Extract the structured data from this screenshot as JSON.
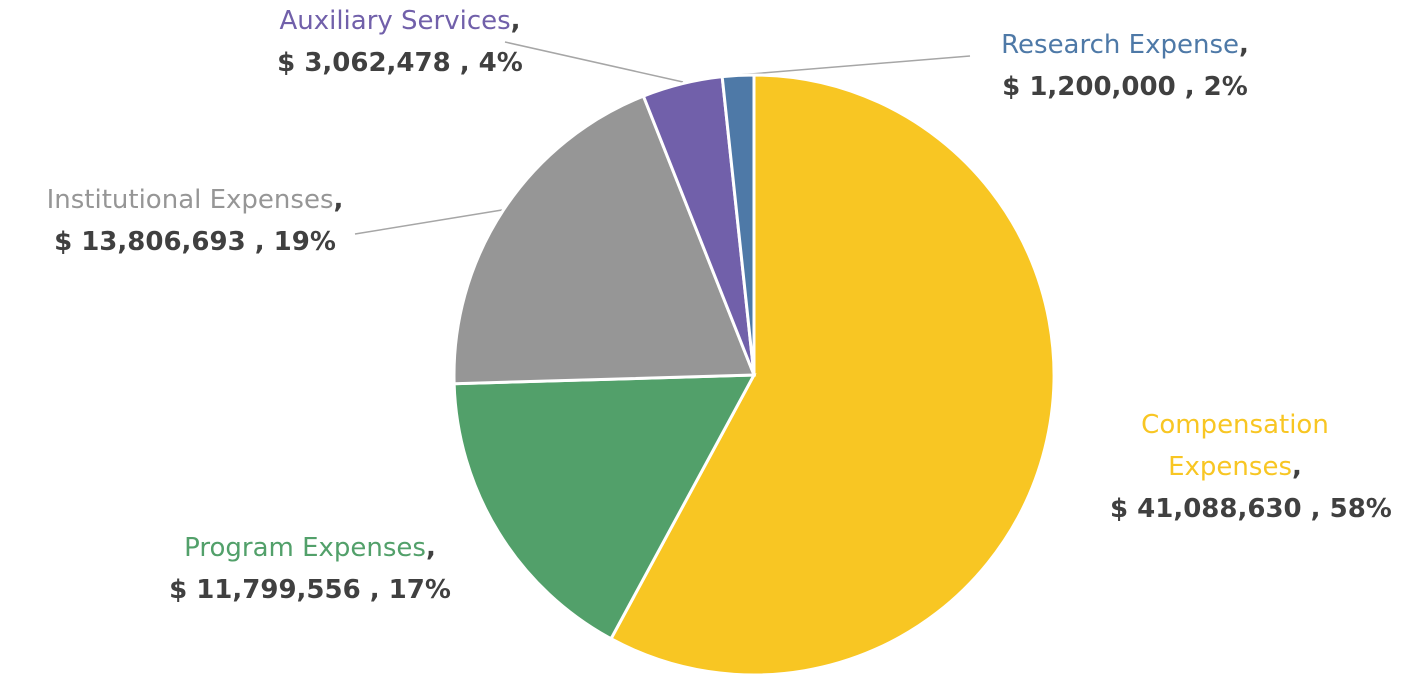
{
  "chart_data": {
    "type": "pie",
    "categories": [
      "Compensation Expenses",
      "Program Expenses",
      "Institutional Expenses",
      "Auxiliary Services",
      "Research Expense"
    ],
    "values": [
      41088630,
      11799556,
      13806693,
      3062478,
      1200000
    ],
    "value_labels": [
      "$ 41,088,630 , 58%",
      "$ 11,799,556 , 17%",
      "$ 13,806,693 , 19%",
      "$ 3,062,478 , 4%",
      "$ 1,200,000 , 2%"
    ],
    "colors": [
      "#f8c623",
      "#52a06a",
      "#969696",
      "#7160aa",
      "#4e79a7"
    ],
    "separator": ","
  }
}
